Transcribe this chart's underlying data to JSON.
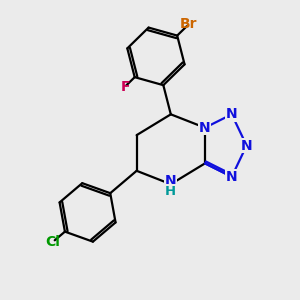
{
  "bg_color": "#ebebeb",
  "bond_color": "#000000",
  "N_color": "#1010dd",
  "Br_color": "#cc6600",
  "F_color": "#cc0055",
  "Cl_color": "#009900",
  "NH_color": "#009999",
  "font_size": 10,
  "lw": 1.6,
  "figsize": [
    3.0,
    3.0
  ],
  "dpi": 100,
  "xlim": [
    0,
    10
  ],
  "ylim": [
    0,
    10
  ]
}
